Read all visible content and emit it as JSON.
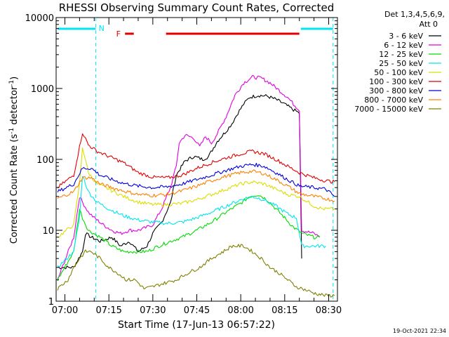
{
  "chart_data": {
    "type": "line",
    "title": "RHESSI Observing Summary Count Rates, Corrected",
    "xlabel": "Start Time (17-Jun-13 06:57:22)",
    "ylabel_main": "Corrected Count Rate (s",
    "ylabel_sup": "-1",
    "ylabel_rest": " detector",
    "ylabel_end": ")",
    "x_range_min": [
      -3,
      93
    ],
    "y_range": [
      1,
      10000
    ],
    "y_scale": "log",
    "x_ticks": [
      {
        "min": 0,
        "label": "07:00"
      },
      {
        "min": 15,
        "label": "07:15"
      },
      {
        "min": 30,
        "label": "07:30"
      },
      {
        "min": 45,
        "label": "07:45"
      },
      {
        "min": 60,
        "label": "08:00"
      },
      {
        "min": 75,
        "label": "08:15"
      },
      {
        "min": 90,
        "label": "08:30"
      }
    ],
    "y_ticks": [
      {
        "value": 1,
        "label": "1"
      },
      {
        "value": 10,
        "label": "10"
      },
      {
        "value": 100,
        "label": "100"
      },
      {
        "value": 1000,
        "label": "1000"
      },
      {
        "value": 10000,
        "label": "10000"
      }
    ],
    "legend_header": [
      "Det 1,3,4,5,6,9,",
      "Att 0"
    ],
    "legend_placement": "right",
    "flags": {
      "night_label": "N",
      "flare_label": "F",
      "night_color": "#00e5ee",
      "flare_color": "#e00000",
      "night_dashes_min": [
        10.5,
        91.5
      ],
      "night_bars_min": [
        [
          -2.5,
          10.5
        ],
        [
          80.5,
          91.5
        ]
      ],
      "flare_bars_min": [
        [
          20.5,
          23.5
        ],
        [
          34.5,
          80
        ]
      ]
    },
    "series": [
      {
        "name": "3 - 6 keV",
        "color": "#000000",
        "points": [
          [
            -2.5,
            3
          ],
          [
            3,
            3
          ],
          [
            6,
            5
          ],
          [
            7,
            9
          ],
          [
            9,
            8
          ],
          [
            12,
            7
          ],
          [
            16,
            8
          ],
          [
            19,
            6
          ],
          [
            22,
            7
          ],
          [
            25,
            5
          ],
          [
            28,
            6
          ],
          [
            30,
            9
          ],
          [
            33,
            13
          ],
          [
            36,
            24
          ],
          [
            38,
            60
          ],
          [
            41,
            95
          ],
          [
            44,
            110
          ],
          [
            47,
            100
          ],
          [
            49,
            110
          ],
          [
            52,
            180
          ],
          [
            55,
            250
          ],
          [
            57,
            320
          ],
          [
            59,
            450
          ],
          [
            61,
            600
          ],
          [
            63,
            750
          ],
          [
            66,
            800
          ],
          [
            69,
            780
          ],
          [
            72,
            700
          ],
          [
            75,
            600
          ],
          [
            78,
            500
          ],
          [
            80,
            450
          ],
          [
            80.8,
            4
          ]
        ]
      },
      {
        "name": "6 - 12 keV",
        "color": "#e000e0",
        "points": [
          [
            -2.5,
            2
          ],
          [
            3,
            8
          ],
          [
            5,
            30
          ],
          [
            6,
            25
          ],
          [
            8,
            18
          ],
          [
            10,
            15
          ],
          [
            13,
            12
          ],
          [
            16,
            10
          ],
          [
            19,
            9
          ],
          [
            22,
            10
          ],
          [
            25,
            10
          ],
          [
            28,
            11
          ],
          [
            30,
            12
          ],
          [
            33,
            20
          ],
          [
            36,
            40
          ],
          [
            38,
            80
          ],
          [
            39,
            170
          ],
          [
            41,
            220
          ],
          [
            44,
            200
          ],
          [
            46,
            150
          ],
          [
            48,
            210
          ],
          [
            50,
            170
          ],
          [
            52,
            230
          ],
          [
            55,
            400
          ],
          [
            58,
            800
          ],
          [
            61,
            1200
          ],
          [
            64,
            1450
          ],
          [
            67,
            1400
          ],
          [
            70,
            1200
          ],
          [
            73,
            950
          ],
          [
            76,
            750
          ],
          [
            78,
            600
          ],
          [
            80,
            500
          ],
          [
            80.8,
            10
          ],
          [
            85,
            9
          ],
          [
            87,
            8
          ]
        ]
      },
      {
        "name": "12 - 25 keV",
        "color": "#00dd00",
        "points": [
          [
            -2.5,
            2
          ],
          [
            3,
            5
          ],
          [
            5,
            20
          ],
          [
            6,
            15
          ],
          [
            8,
            10
          ],
          [
            12,
            8
          ],
          [
            16,
            6
          ],
          [
            20,
            5
          ],
          [
            24,
            5
          ],
          [
            28,
            5
          ],
          [
            32,
            6
          ],
          [
            36,
            7
          ],
          [
            40,
            8
          ],
          [
            45,
            10
          ],
          [
            50,
            13
          ],
          [
            55,
            18
          ],
          [
            60,
            24
          ],
          [
            63,
            30
          ],
          [
            66,
            32
          ],
          [
            69,
            27
          ],
          [
            72,
            20
          ],
          [
            75,
            15
          ],
          [
            78,
            11
          ],
          [
            81,
            9
          ],
          [
            85,
            8
          ],
          [
            87,
            8
          ]
        ]
      },
      {
        "name": "25 - 50 keV",
        "color": "#00e5ee",
        "points": [
          [
            -2.5,
            3
          ],
          [
            3,
            5
          ],
          [
            5,
            15
          ],
          [
            6,
            60
          ],
          [
            8,
            35
          ],
          [
            11,
            25
          ],
          [
            15,
            20
          ],
          [
            20,
            16
          ],
          [
            25,
            14
          ],
          [
            30,
            13
          ],
          [
            35,
            12.5
          ],
          [
            40,
            13
          ],
          [
            45,
            15
          ],
          [
            50,
            18
          ],
          [
            55,
            22
          ],
          [
            60,
            27
          ],
          [
            64,
            30
          ],
          [
            68,
            27
          ],
          [
            72,
            22
          ],
          [
            76,
            17
          ],
          [
            79,
            15
          ],
          [
            80.8,
            6
          ],
          [
            85,
            6
          ],
          [
            89,
            6
          ]
        ]
      },
      {
        "name": "50 - 100 keV",
        "color": "#dddd00",
        "points": [
          [
            -2.5,
            8
          ],
          [
            3,
            12
          ],
          [
            5,
            45
          ],
          [
            6,
            150
          ],
          [
            8,
            65
          ],
          [
            11,
            45
          ],
          [
            15,
            38
          ],
          [
            20,
            30
          ],
          [
            25,
            25
          ],
          [
            30,
            23
          ],
          [
            35,
            23
          ],
          [
            40,
            24
          ],
          [
            45,
            27
          ],
          [
            50,
            32
          ],
          [
            55,
            38
          ],
          [
            60,
            45
          ],
          [
            64,
            48
          ],
          [
            68,
            45
          ],
          [
            72,
            38
          ],
          [
            76,
            32
          ],
          [
            80,
            30
          ],
          [
            85,
            22
          ],
          [
            88,
            20
          ],
          [
            92,
            20
          ]
        ]
      },
      {
        "name": "100 - 300 keV",
        "color": "#e00000",
        "points": [
          [
            -2.5,
            40
          ],
          [
            3,
            60
          ],
          [
            5,
            150
          ],
          [
            6,
            240
          ],
          [
            8,
            160
          ],
          [
            11,
            130
          ],
          [
            15,
            110
          ],
          [
            20,
            90
          ],
          [
            25,
            65
          ],
          [
            30,
            56
          ],
          [
            35,
            55
          ],
          [
            40,
            60
          ],
          [
            45,
            75
          ],
          [
            50,
            90
          ],
          [
            55,
            105
          ],
          [
            60,
            120
          ],
          [
            64,
            130
          ],
          [
            68,
            120
          ],
          [
            72,
            100
          ],
          [
            76,
            80
          ],
          [
            80,
            65
          ],
          [
            85,
            55
          ],
          [
            89,
            50
          ],
          [
            92,
            48
          ]
        ]
      },
      {
        "name": "300 - 800 keV",
        "color": "#0000dd",
        "points": [
          [
            -2.5,
            35
          ],
          [
            3,
            45
          ],
          [
            6,
            75
          ],
          [
            9,
            75
          ],
          [
            12,
            60
          ],
          [
            16,
            52
          ],
          [
            20,
            46
          ],
          [
            25,
            42
          ],
          [
            30,
            40
          ],
          [
            35,
            41
          ],
          [
            40,
            45
          ],
          [
            45,
            52
          ],
          [
            50,
            60
          ],
          [
            55,
            70
          ],
          [
            60,
            80
          ],
          [
            64,
            85
          ],
          [
            68,
            80
          ],
          [
            72,
            65
          ],
          [
            76,
            52
          ],
          [
            80,
            42
          ],
          [
            85,
            40
          ],
          [
            89,
            38
          ],
          [
            92,
            30
          ]
        ]
      },
      {
        "name": "800 - 7000 keV",
        "color": "#ff8000",
        "points": [
          [
            -2.5,
            28
          ],
          [
            3,
            35
          ],
          [
            6,
            55
          ],
          [
            9,
            55
          ],
          [
            12,
            45
          ],
          [
            16,
            40
          ],
          [
            20,
            36
          ],
          [
            25,
            32
          ],
          [
            30,
            31
          ],
          [
            35,
            32
          ],
          [
            40,
            36
          ],
          [
            45,
            42
          ],
          [
            50,
            50
          ],
          [
            55,
            58
          ],
          [
            60,
            65
          ],
          [
            64,
            68
          ],
          [
            68,
            63
          ],
          [
            72,
            52
          ],
          [
            76,
            42
          ],
          [
            80,
            33
          ],
          [
            85,
            30
          ],
          [
            89,
            28
          ],
          [
            92,
            26
          ]
        ]
      },
      {
        "name": "7000 - 15000 keV",
        "color": "#808000",
        "points": [
          [
            -2.5,
            1.5
          ],
          [
            1,
            2
          ],
          [
            3,
            3
          ],
          [
            5,
            4
          ],
          [
            7,
            5
          ],
          [
            9,
            5
          ],
          [
            12,
            4
          ],
          [
            15,
            3
          ],
          [
            18,
            2.5
          ],
          [
            21,
            2
          ],
          [
            24,
            2
          ],
          [
            27,
            1.5
          ],
          [
            30,
            1.6
          ],
          [
            34,
            1.8
          ],
          [
            38,
            2
          ],
          [
            42,
            2.5
          ],
          [
            46,
            3
          ],
          [
            50,
            4
          ],
          [
            54,
            5
          ],
          [
            57,
            6
          ],
          [
            61,
            6
          ],
          [
            64,
            5
          ],
          [
            67,
            4
          ],
          [
            70,
            3
          ],
          [
            73,
            2.5
          ],
          [
            76,
            2
          ],
          [
            79,
            1.6
          ],
          [
            81,
            1.5
          ],
          [
            85,
            1.3
          ],
          [
            89,
            1.2
          ],
          [
            92,
            1.2
          ]
        ]
      }
    ]
  },
  "timestamp": "19-Oct-2021 22:34"
}
